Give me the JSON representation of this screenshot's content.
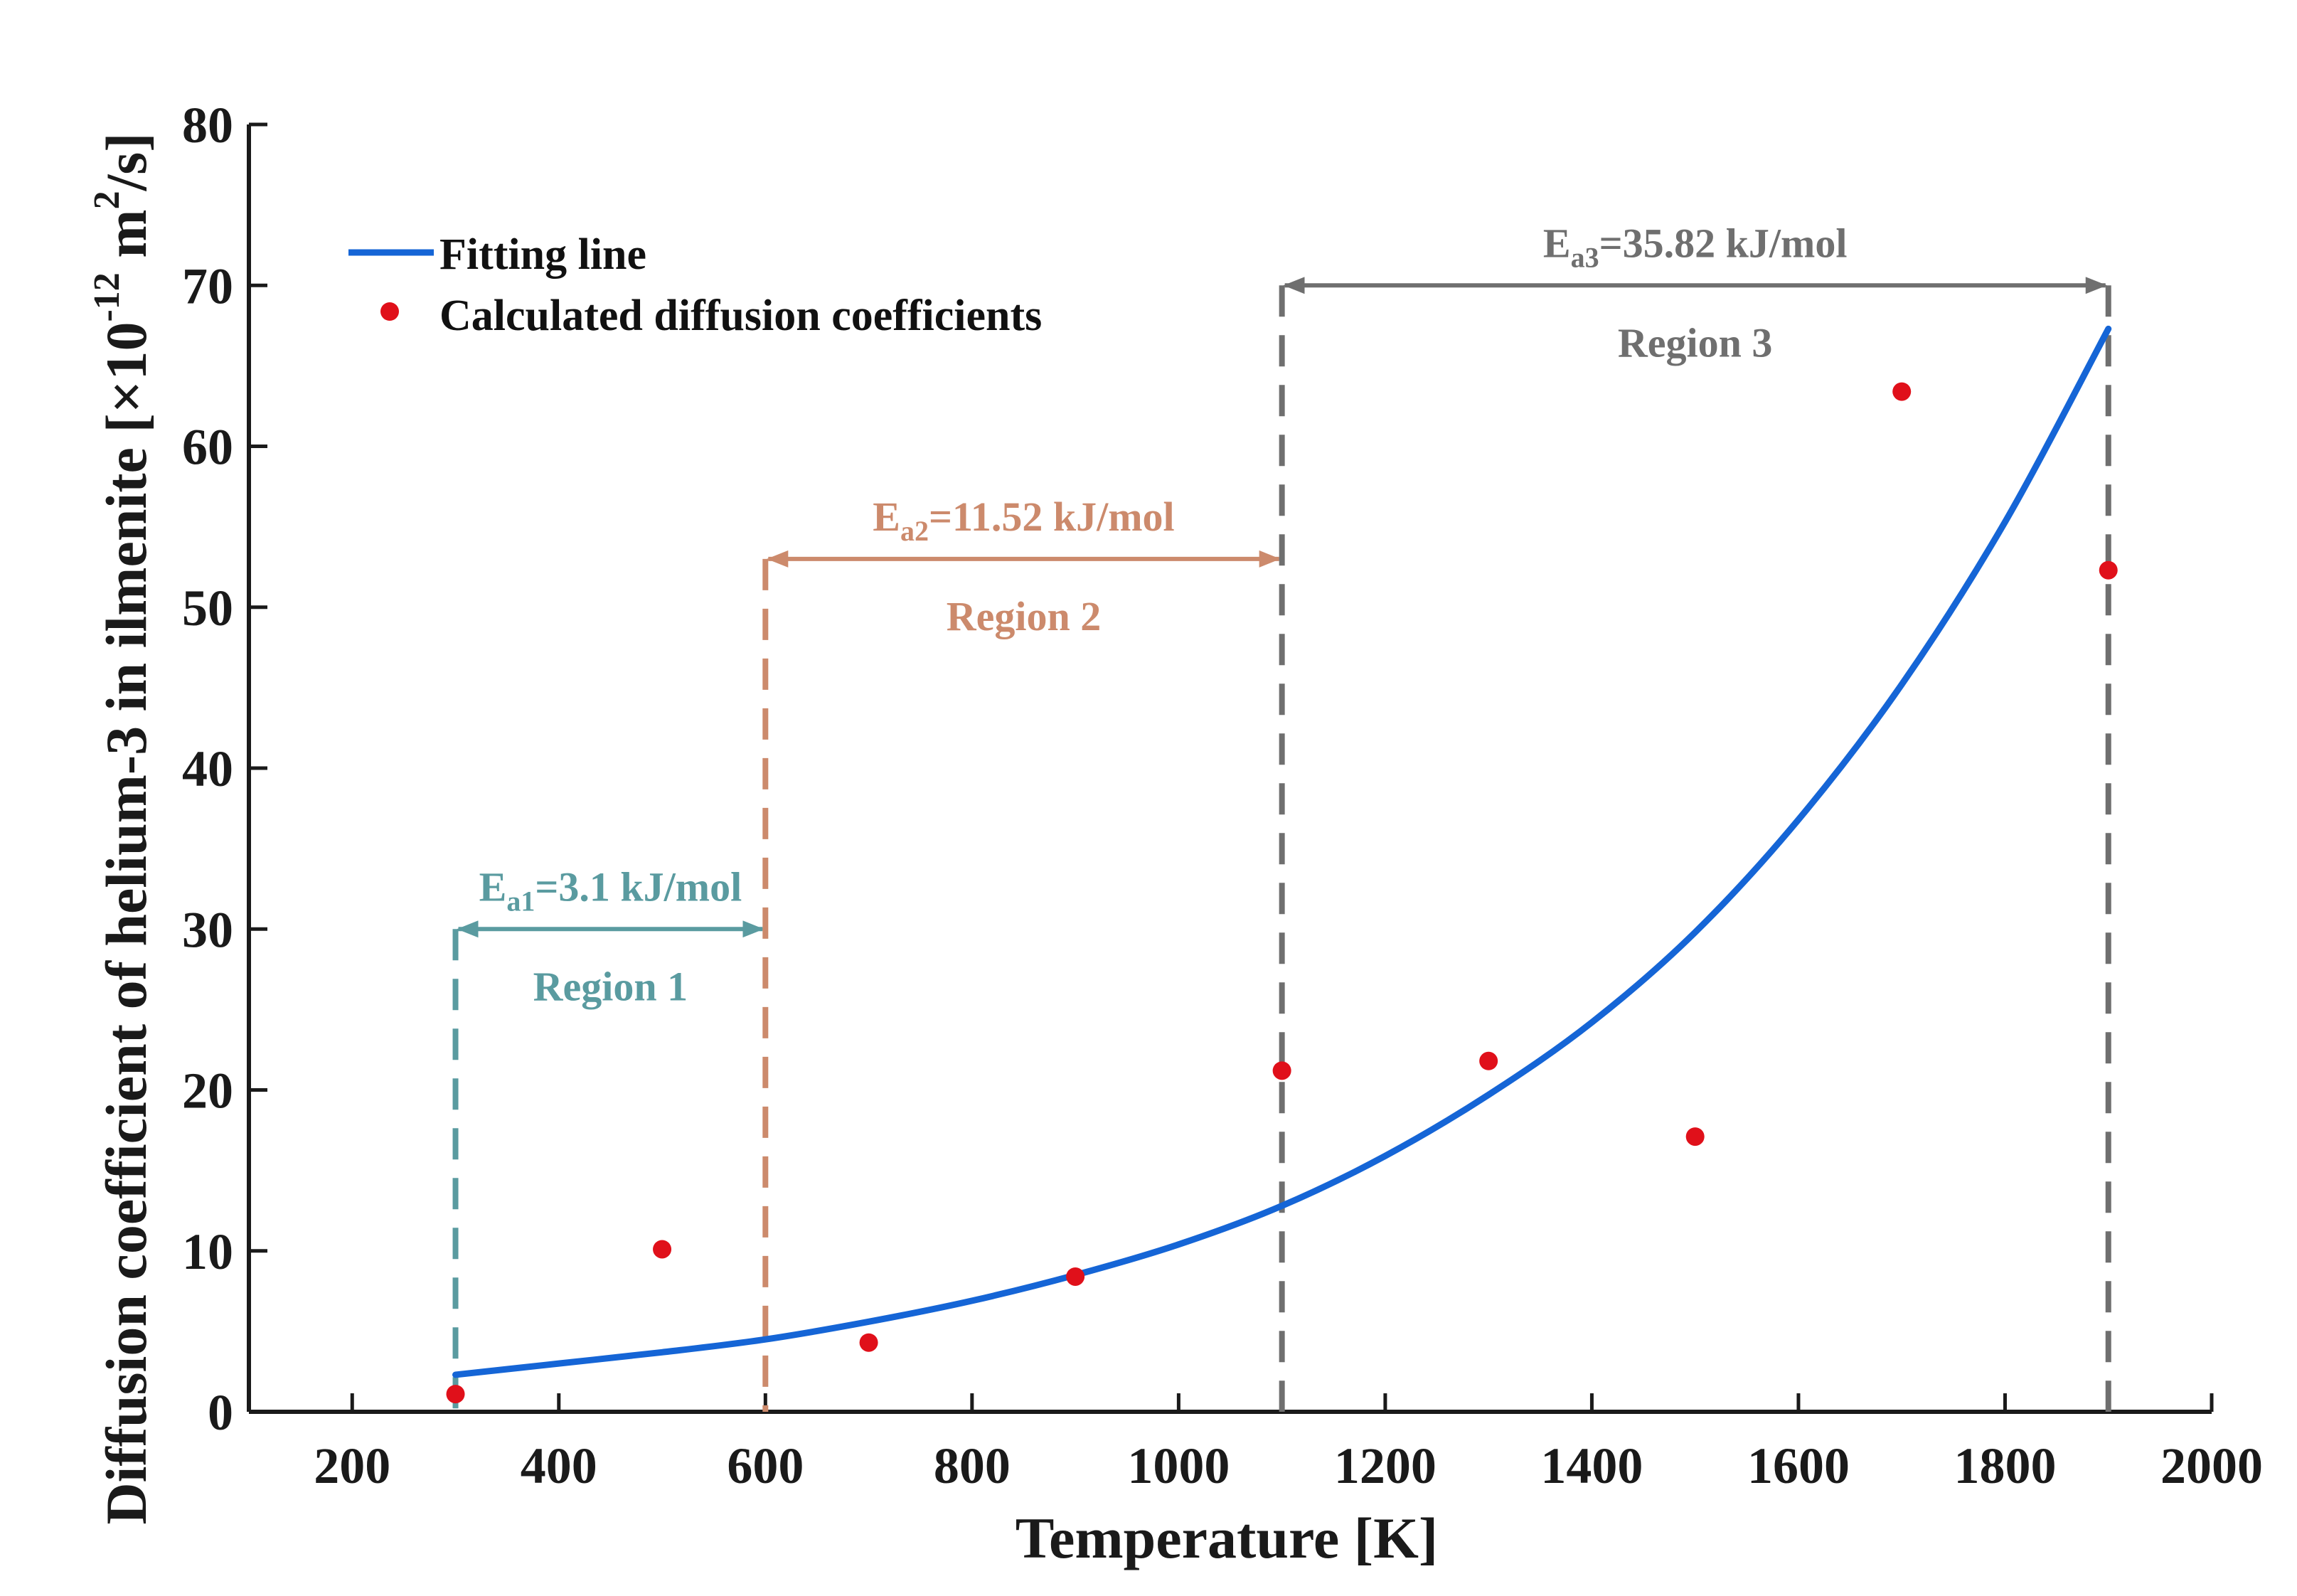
{
  "chart_data": {
    "type": "scatter",
    "title": "",
    "xlabel": "Temperature [K]",
    "ylabel": {
      "prefix": "Diffusion coefficient of helium-3 in ilmenite [×10",
      "exp": "-12",
      "middle": " m",
      "exp2": "2",
      "suffix": "/s]"
    },
    "xlim": [
      100,
      2000
    ],
    "ylim": [
      0,
      80
    ],
    "xticks": [
      200,
      400,
      600,
      800,
      1000,
      1200,
      1400,
      1600,
      1800,
      2000
    ],
    "yticks": [
      0,
      10,
      20,
      30,
      40,
      50,
      60,
      70,
      80
    ],
    "legend": {
      "position": "top-left",
      "items": [
        {
          "label": "Fitting line",
          "kind": "line",
          "color": "#1565d6"
        },
        {
          "label": "Calculated diffusion coefficients",
          "kind": "marker",
          "color": "#e0101a"
        }
      ]
    },
    "series": [
      {
        "name": "Calculated diffusion coefficients",
        "kind": "scatter",
        "color": "#e0101a",
        "points": [
          {
            "x": 300,
            "y": 1.1
          },
          {
            "x": 500,
            "y": 10.1
          },
          {
            "x": 700,
            "y": 4.3
          },
          {
            "x": 900,
            "y": 8.4
          },
          {
            "x": 1100,
            "y": 21.2
          },
          {
            "x": 1300,
            "y": 21.8
          },
          {
            "x": 1500,
            "y": 17.1
          },
          {
            "x": 1700,
            "y": 63.4
          },
          {
            "x": 1900,
            "y": 52.3
          }
        ]
      },
      {
        "name": "Fitting line",
        "kind": "line",
        "color": "#1565d6",
        "points": [
          {
            "x": 300,
            "y": 2.3
          },
          {
            "x": 400,
            "y": 3.0
          },
          {
            "x": 500,
            "y": 3.7
          },
          {
            "x": 600,
            "y": 4.5
          },
          {
            "x": 700,
            "y": 5.6
          },
          {
            "x": 800,
            "y": 6.9
          },
          {
            "x": 900,
            "y": 8.5
          },
          {
            "x": 1000,
            "y": 10.4
          },
          {
            "x": 1100,
            "y": 12.8
          },
          {
            "x": 1200,
            "y": 15.9
          },
          {
            "x": 1300,
            "y": 19.7
          },
          {
            "x": 1400,
            "y": 24.2
          },
          {
            "x": 1500,
            "y": 29.8
          },
          {
            "x": 1600,
            "y": 36.8
          },
          {
            "x": 1700,
            "y": 45.2
          },
          {
            "x": 1800,
            "y": 55.3
          },
          {
            "x": 1900,
            "y": 67.3
          }
        ]
      }
    ],
    "regions": [
      {
        "label": "Region 1",
        "ea_main": "E",
        "ea_sub": "a1",
        "ea_value": "=3.1 kJ/mol",
        "x_start": 300,
        "x_end": 600,
        "y_arrow": 30,
        "color": "#5a9ba0"
      },
      {
        "label": "Region 2",
        "ea_main": "E",
        "ea_sub": "a2",
        "ea_value": "=11.52 kJ/mol",
        "x_start": 600,
        "x_end": 1100,
        "y_arrow": 53,
        "color": "#cc8a6c"
      },
      {
        "label": "Region 3",
        "ea_main": "E",
        "ea_sub": "a3",
        "ea_value": "=35.82 kJ/mol",
        "x_start": 1100,
        "x_end": 1900,
        "y_arrow": 70,
        "color": "#6f6f6f"
      }
    ]
  }
}
